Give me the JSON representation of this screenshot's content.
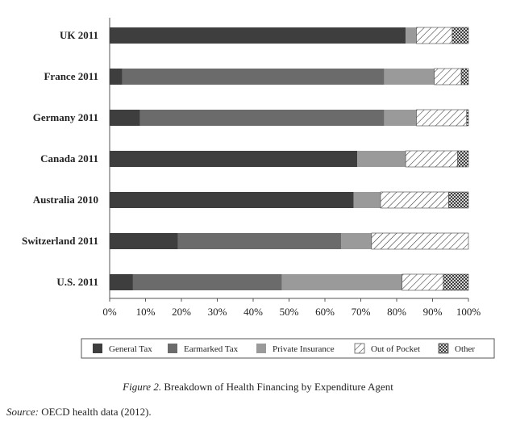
{
  "chart_data": {
    "type": "bar",
    "orientation": "horizontal",
    "stacked": true,
    "categories": [
      "UK 2011",
      "France 2011",
      "Germany 2011",
      "Canada 2011",
      "Australia 2010",
      "Switzerland 2011",
      "U.S. 2011"
    ],
    "series": [
      {
        "name": "General Tax",
        "color": "#3e3e3e",
        "pattern": "solid",
        "values": [
          82.5,
          3.5,
          8.5,
          69,
          68,
          19,
          6.5
        ]
      },
      {
        "name": "Earmarked Tax",
        "color": "#6b6b6b",
        "pattern": "solid",
        "values": [
          0,
          73,
          68,
          0,
          0,
          45.5,
          41.5
        ]
      },
      {
        "name": "Private Insurance",
        "color": "#9a9a9a",
        "pattern": "solid",
        "values": [
          3,
          14,
          9,
          13.5,
          7.5,
          8.5,
          33.5
        ]
      },
      {
        "name": "Out of Pocket",
        "color": "#ffffff",
        "pattern": "hatch",
        "values": [
          10,
          7.5,
          14,
          14.5,
          19,
          27,
          11.5
        ]
      },
      {
        "name": "Other",
        "color": "#ffffff",
        "pattern": "crosshatch",
        "values": [
          4.5,
          2,
          0.5,
          3,
          5.5,
          0,
          7
        ]
      }
    ],
    "xticks": [
      "0%",
      "10%",
      "20%",
      "30%",
      "40%",
      "50%",
      "60%",
      "70%",
      "80%",
      "90%",
      "100%"
    ],
    "xlim": [
      0,
      100
    ],
    "legend_position": "bottom"
  },
  "caption": {
    "figure_label": "Figure 2.",
    "text": " Breakdown of Health Financing by Expenditure Agent"
  },
  "source": {
    "label": "Source:",
    "text": " OECD health data (2012)."
  }
}
